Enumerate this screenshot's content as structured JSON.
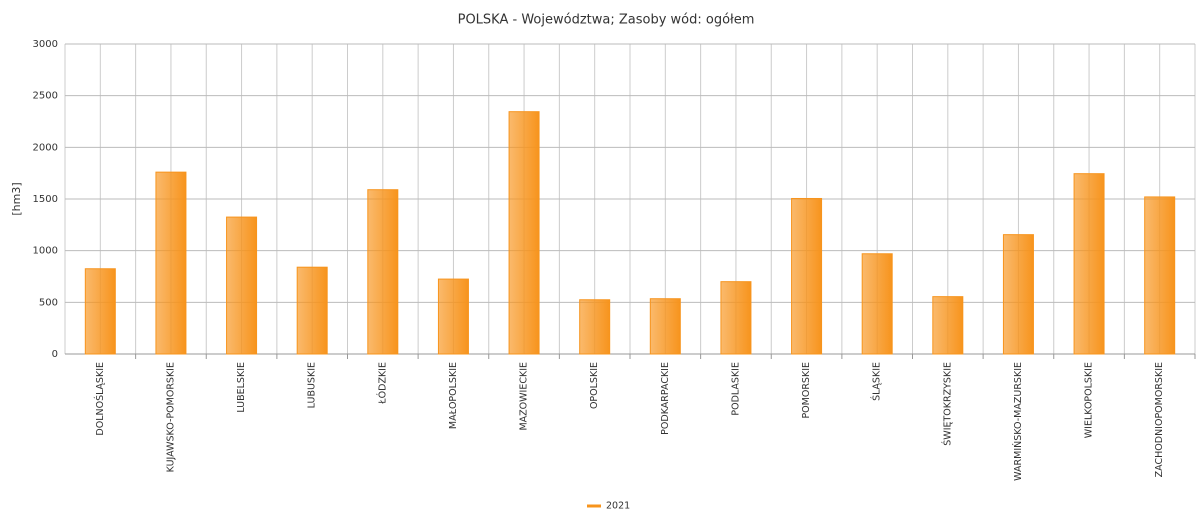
{
  "chart_data": {
    "type": "bar",
    "title": "POLSKA - Województwa; Zasoby wód: ogółem",
    "y_label": "[hm3]",
    "categories": [
      "DOLNOŚLĄSKIE",
      "KUJAWSKO-POMORSKIE",
      "LUBELSKIE",
      "LUBUSKIE",
      "ŁÓDZKIE",
      "MAŁOPOLSKIE",
      "MAZOWIECKIE",
      "OPOLSKIE",
      "PODKARPACKIE",
      "PODLASKIE",
      "POMORSKIE",
      "ŚLĄSKIE",
      "ŚWIĘTOKRZYSKIE",
      "WARMIŃSKO-MAZURSKIE",
      "WIELKOPOLSKIE",
      "ZACHODNIOPOMORSKIE"
    ],
    "series": [
      {
        "name": "2021",
        "color": "#f7941d",
        "values": [
          825,
          1760,
          1325,
          840,
          1590,
          725,
          2345,
          525,
          535,
          700,
          1505,
          970,
          555,
          1155,
          1745,
          1520
        ]
      }
    ],
    "ylim": [
      0,
      3000
    ],
    "yticks": [
      0,
      500,
      1000,
      1500,
      2000,
      2500,
      3000
    ],
    "grid": true,
    "legend": "bottom"
  }
}
